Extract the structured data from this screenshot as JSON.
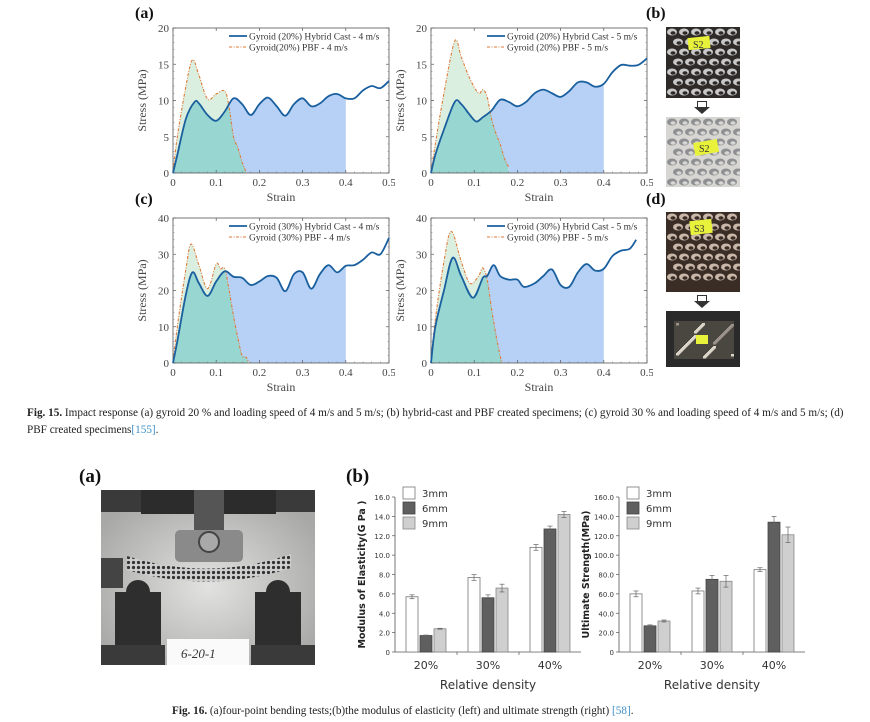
{
  "fig15": {
    "panel_labels": [
      "(a)",
      "(b)",
      "(c)",
      "(d)"
    ],
    "caption_label": "Fig. 15.",
    "caption_text": " Impact response (a) gyroid 20 % and loading speed of 4 m/s and 5 m/s; (b) hybrid-cast and PBF created specimens; (c) gyroid 30 % and loading speed of 4 m/s and 5 m/s; (d) PBF created specimens",
    "caption_ref": "[155]",
    "caption_end": ".",
    "photo_labels": {
      "b_top": "S2",
      "b_bottom": "S2",
      "d_top": "S3",
      "d_bottom": "S3"
    }
  },
  "fig16": {
    "panel_labels": [
      "(a)",
      "(b)"
    ],
    "photo_label": "6-20-1",
    "caption_label": "Fig. 16.",
    "caption_text": " (a)four-point bending tests;(b)the modulus of elasticity (left) and ultimate strength (right) ",
    "caption_ref": "[58]",
    "caption_end": "."
  },
  "colors": {
    "hybrid_line": "#1a5f9e",
    "pbf_line": "#e07b39",
    "hybrid_fill": "#a9c9f3",
    "pbf_fill": "#cde9d4",
    "overlap_fill": "#8fd3cf",
    "bar_3mm": "#ffffff",
    "bar_6mm": "#5f5f5f",
    "bar_9mm": "#cfcfcf",
    "ref_link": "#3c8fc7"
  },
  "chart_data": [
    {
      "id": "fig15a-left",
      "type": "area",
      "title": "",
      "xlabel": "Strain",
      "ylabel": "Stress (MPa)",
      "xlim": [
        0,
        0.5
      ],
      "ylim": [
        0,
        20
      ],
      "xticks": [
        "0",
        "0.1",
        "0.2",
        "0.3",
        "0.4",
        "0.5"
      ],
      "yticks": [
        "0",
        "5",
        "10",
        "15",
        "20"
      ],
      "legend_position": "top-right",
      "hybrid_fill_until": 0.4,
      "series": [
        {
          "name": "Gyroid (20%) Hybrid Cast - 4 m/s",
          "style": "solid",
          "x": [
            0,
            0.01,
            0.03,
            0.05,
            0.06,
            0.08,
            0.1,
            0.12,
            0.14,
            0.16,
            0.18,
            0.2,
            0.22,
            0.24,
            0.26,
            0.28,
            0.3,
            0.32,
            0.34,
            0.36,
            0.38,
            0.4,
            0.42,
            0.44,
            0.46,
            0.48,
            0.5
          ],
          "y": [
            0,
            2.5,
            7.5,
            9.8,
            9.6,
            8.0,
            7.2,
            8.5,
            10.3,
            9.5,
            8.0,
            9.5,
            10.4,
            9.2,
            7.9,
            9.5,
            10.3,
            9.2,
            9.6,
            10.6,
            10.9,
            10.3,
            10.3,
            11.4,
            12.0,
            11.7,
            12.7
          ]
        },
        {
          "name": "Gyroid(20%) PBF - 4 m/s",
          "style": "dash-dot",
          "x": [
            0,
            0.01,
            0.03,
            0.045,
            0.06,
            0.08,
            0.1,
            0.12,
            0.13,
            0.14,
            0.15,
            0.16,
            0.17
          ],
          "y": [
            0,
            5.0,
            12.0,
            15.6,
            13.5,
            10.2,
            10.9,
            11.3,
            9.0,
            5.0,
            3.5,
            1.5,
            0
          ]
        }
      ]
    },
    {
      "id": "fig15a-right",
      "type": "area",
      "title": "",
      "xlabel": "Strain",
      "ylabel": "Stress (MPa)",
      "xlim": [
        0,
        0.5
      ],
      "ylim": [
        0,
        20
      ],
      "xticks": [
        "0",
        "0.1",
        "0.2",
        "0.3",
        "0.4",
        "0.5"
      ],
      "yticks": [
        "0",
        "5",
        "10",
        "15",
        "20"
      ],
      "legend_position": "top-right",
      "hybrid_fill_until": 0.4,
      "series": [
        {
          "name": "Gyroid (20%) Hybrid Cast - 5 m/s",
          "style": "solid",
          "x": [
            0,
            0.01,
            0.03,
            0.055,
            0.07,
            0.09,
            0.105,
            0.12,
            0.14,
            0.16,
            0.18,
            0.2,
            0.22,
            0.24,
            0.26,
            0.28,
            0.3,
            0.32,
            0.34,
            0.36,
            0.38,
            0.4,
            0.42,
            0.44,
            0.46,
            0.48,
            0.5
          ],
          "y": [
            0,
            2.5,
            6.0,
            9.8,
            9.5,
            8.0,
            7.1,
            7.7,
            8.6,
            10.1,
            9.8,
            9.2,
            9.8,
            11.0,
            11.5,
            11.0,
            10.5,
            11.3,
            12.5,
            12.5,
            11.9,
            12.3,
            13.9,
            14.9,
            14.8,
            14.9,
            15.8
          ]
        },
        {
          "name": "Gyroid (20%) PBF - 5 m/s",
          "style": "dash-dot",
          "x": [
            0,
            0.01,
            0.03,
            0.055,
            0.07,
            0.09,
            0.11,
            0.12,
            0.13,
            0.14,
            0.15,
            0.16,
            0.17,
            0.18
          ],
          "y": [
            0,
            4.0,
            11.0,
            18.2,
            16.0,
            13.0,
            11.0,
            11.5,
            10.5,
            7.5,
            5.5,
            4.0,
            2.0,
            0.8
          ]
        }
      ]
    },
    {
      "id": "fig15c-left",
      "type": "area",
      "title": "",
      "xlabel": "Strain",
      "ylabel": "Stress (MPa)",
      "xlim": [
        0,
        0.5
      ],
      "ylim": [
        0,
        40
      ],
      "xticks": [
        "0",
        "0.1",
        "0.2",
        "0.3",
        "0.4",
        "0.5"
      ],
      "yticks": [
        "0",
        "10",
        "20",
        "30",
        "40"
      ],
      "legend_position": "top-right",
      "hybrid_fill_until": 0.4,
      "series": [
        {
          "name": "Gyroid (30%) Hybrid Cast - 4 m/s",
          "style": "solid",
          "x": [
            0,
            0.01,
            0.03,
            0.045,
            0.06,
            0.08,
            0.1,
            0.12,
            0.14,
            0.16,
            0.18,
            0.2,
            0.22,
            0.24,
            0.26,
            0.28,
            0.3,
            0.32,
            0.34,
            0.36,
            0.38,
            0.4,
            0.42,
            0.44,
            0.46,
            0.48,
            0.5
          ],
          "y": [
            0,
            6.0,
            19.0,
            25.0,
            22.0,
            18.5,
            22.5,
            25.3,
            23.8,
            23.5,
            21.5,
            22.5,
            24.0,
            23.5,
            19.8,
            24.5,
            25.0,
            20.5,
            24.5,
            27.0,
            25.0,
            26.8,
            27.0,
            28.5,
            30.5,
            30.0,
            34.5
          ]
        },
        {
          "name": "Gyroid (30%) PBF - 4 m/s",
          "style": "dash-dot",
          "x": [
            0,
            0.01,
            0.03,
            0.042,
            0.06,
            0.08,
            0.1,
            0.11,
            0.12,
            0.13,
            0.14,
            0.15,
            0.16,
            0.17,
            0.175
          ],
          "y": [
            0,
            10.0,
            26.0,
            32.8,
            27.0,
            20.5,
            27.3,
            26.0,
            26.0,
            20.0,
            13.0,
            7.0,
            2.0,
            1.5,
            0
          ]
        }
      ]
    },
    {
      "id": "fig15c-right",
      "type": "area",
      "title": "",
      "xlabel": "Strain",
      "ylabel": "Stress (MPa)",
      "xlim": [
        0,
        0.5
      ],
      "ylim": [
        0,
        40
      ],
      "xticks": [
        "0",
        "0.1",
        "0.2",
        "0.3",
        "0.4",
        "0.5"
      ],
      "yticks": [
        "0",
        "10",
        "20",
        "30",
        "40"
      ],
      "legend_position": "top-right",
      "hybrid_fill_until": 0.4,
      "series": [
        {
          "name": "Gyroid (30%) Hybrid Cast - 5 m/s",
          "style": "solid",
          "x": [
            0,
            0.01,
            0.03,
            0.05,
            0.07,
            0.097,
            0.12,
            0.13,
            0.145,
            0.16,
            0.18,
            0.2,
            0.215,
            0.24,
            0.26,
            0.28,
            0.3,
            0.32,
            0.34,
            0.36,
            0.38,
            0.4,
            0.42,
            0.44,
            0.46,
            0.475
          ],
          "y": [
            0,
            10.0,
            20.0,
            29.0,
            24.0,
            18.0,
            23.5,
            24.0,
            27.0,
            24.0,
            23.0,
            23.0,
            21.0,
            22.0,
            24.0,
            25.8,
            21.5,
            21.0,
            25.0,
            27.3,
            25.5,
            26.0,
            29.5,
            31.0,
            31.5,
            34.0
          ]
        },
        {
          "name": "Gyroid (30%) PBF - 5 m/s",
          "style": "dash-dot",
          "x": [
            0,
            0.01,
            0.03,
            0.047,
            0.07,
            0.09,
            0.11,
            0.12,
            0.13,
            0.14,
            0.15,
            0.16,
            0.165
          ],
          "y": [
            0,
            12.0,
            28.0,
            36.3,
            28.0,
            22.0,
            24.0,
            26.2,
            23.0,
            15.0,
            8.0,
            2.0,
            0
          ]
        }
      ]
    },
    {
      "id": "fig16b-left",
      "type": "bar",
      "title": "",
      "xlabel": "Relative density",
      "ylabel": "Modulus of Elasticity(G Pa )",
      "categories": [
        "20%",
        "30%",
        "40%"
      ],
      "ylim": [
        0,
        16
      ],
      "yticks": [
        "0",
        "2.0",
        "4.0",
        "6.0",
        "8.0",
        "10.0",
        "12.0",
        "14.0",
        "16.0"
      ],
      "legend_position": "top-left",
      "series": [
        {
          "name": "3mm",
          "values": [
            5.7,
            7.7,
            10.8
          ],
          "errors": [
            0.2,
            0.3,
            0.3
          ]
        },
        {
          "name": "6mm",
          "values": [
            1.7,
            5.6,
            12.7
          ],
          "errors": [
            0.05,
            0.3,
            0.3
          ]
        },
        {
          "name": "9mm",
          "values": [
            2.4,
            6.6,
            14.2
          ],
          "errors": [
            0.05,
            0.4,
            0.3
          ]
        }
      ]
    },
    {
      "id": "fig16b-right",
      "type": "bar",
      "title": "",
      "xlabel": "Relative density",
      "ylabel": "Ultimate Strength(MPa)",
      "categories": [
        "20%",
        "30%",
        "40%"
      ],
      "ylim": [
        0,
        160
      ],
      "yticks": [
        "0",
        "20.0",
        "40.0",
        "60.0",
        "80.0",
        "100.0",
        "120.0",
        "140.0",
        "160.0"
      ],
      "legend_position": "top-left",
      "series": [
        {
          "name": "3mm",
          "values": [
            60,
            63,
            85
          ],
          "errors": [
            3,
            3,
            2
          ]
        },
        {
          "name": "6mm",
          "values": [
            27,
            75,
            134
          ],
          "errors": [
            1,
            4,
            6
          ]
        },
        {
          "name": "9mm",
          "values": [
            32,
            73,
            121
          ],
          "errors": [
            1,
            6,
            8
          ]
        }
      ]
    }
  ]
}
